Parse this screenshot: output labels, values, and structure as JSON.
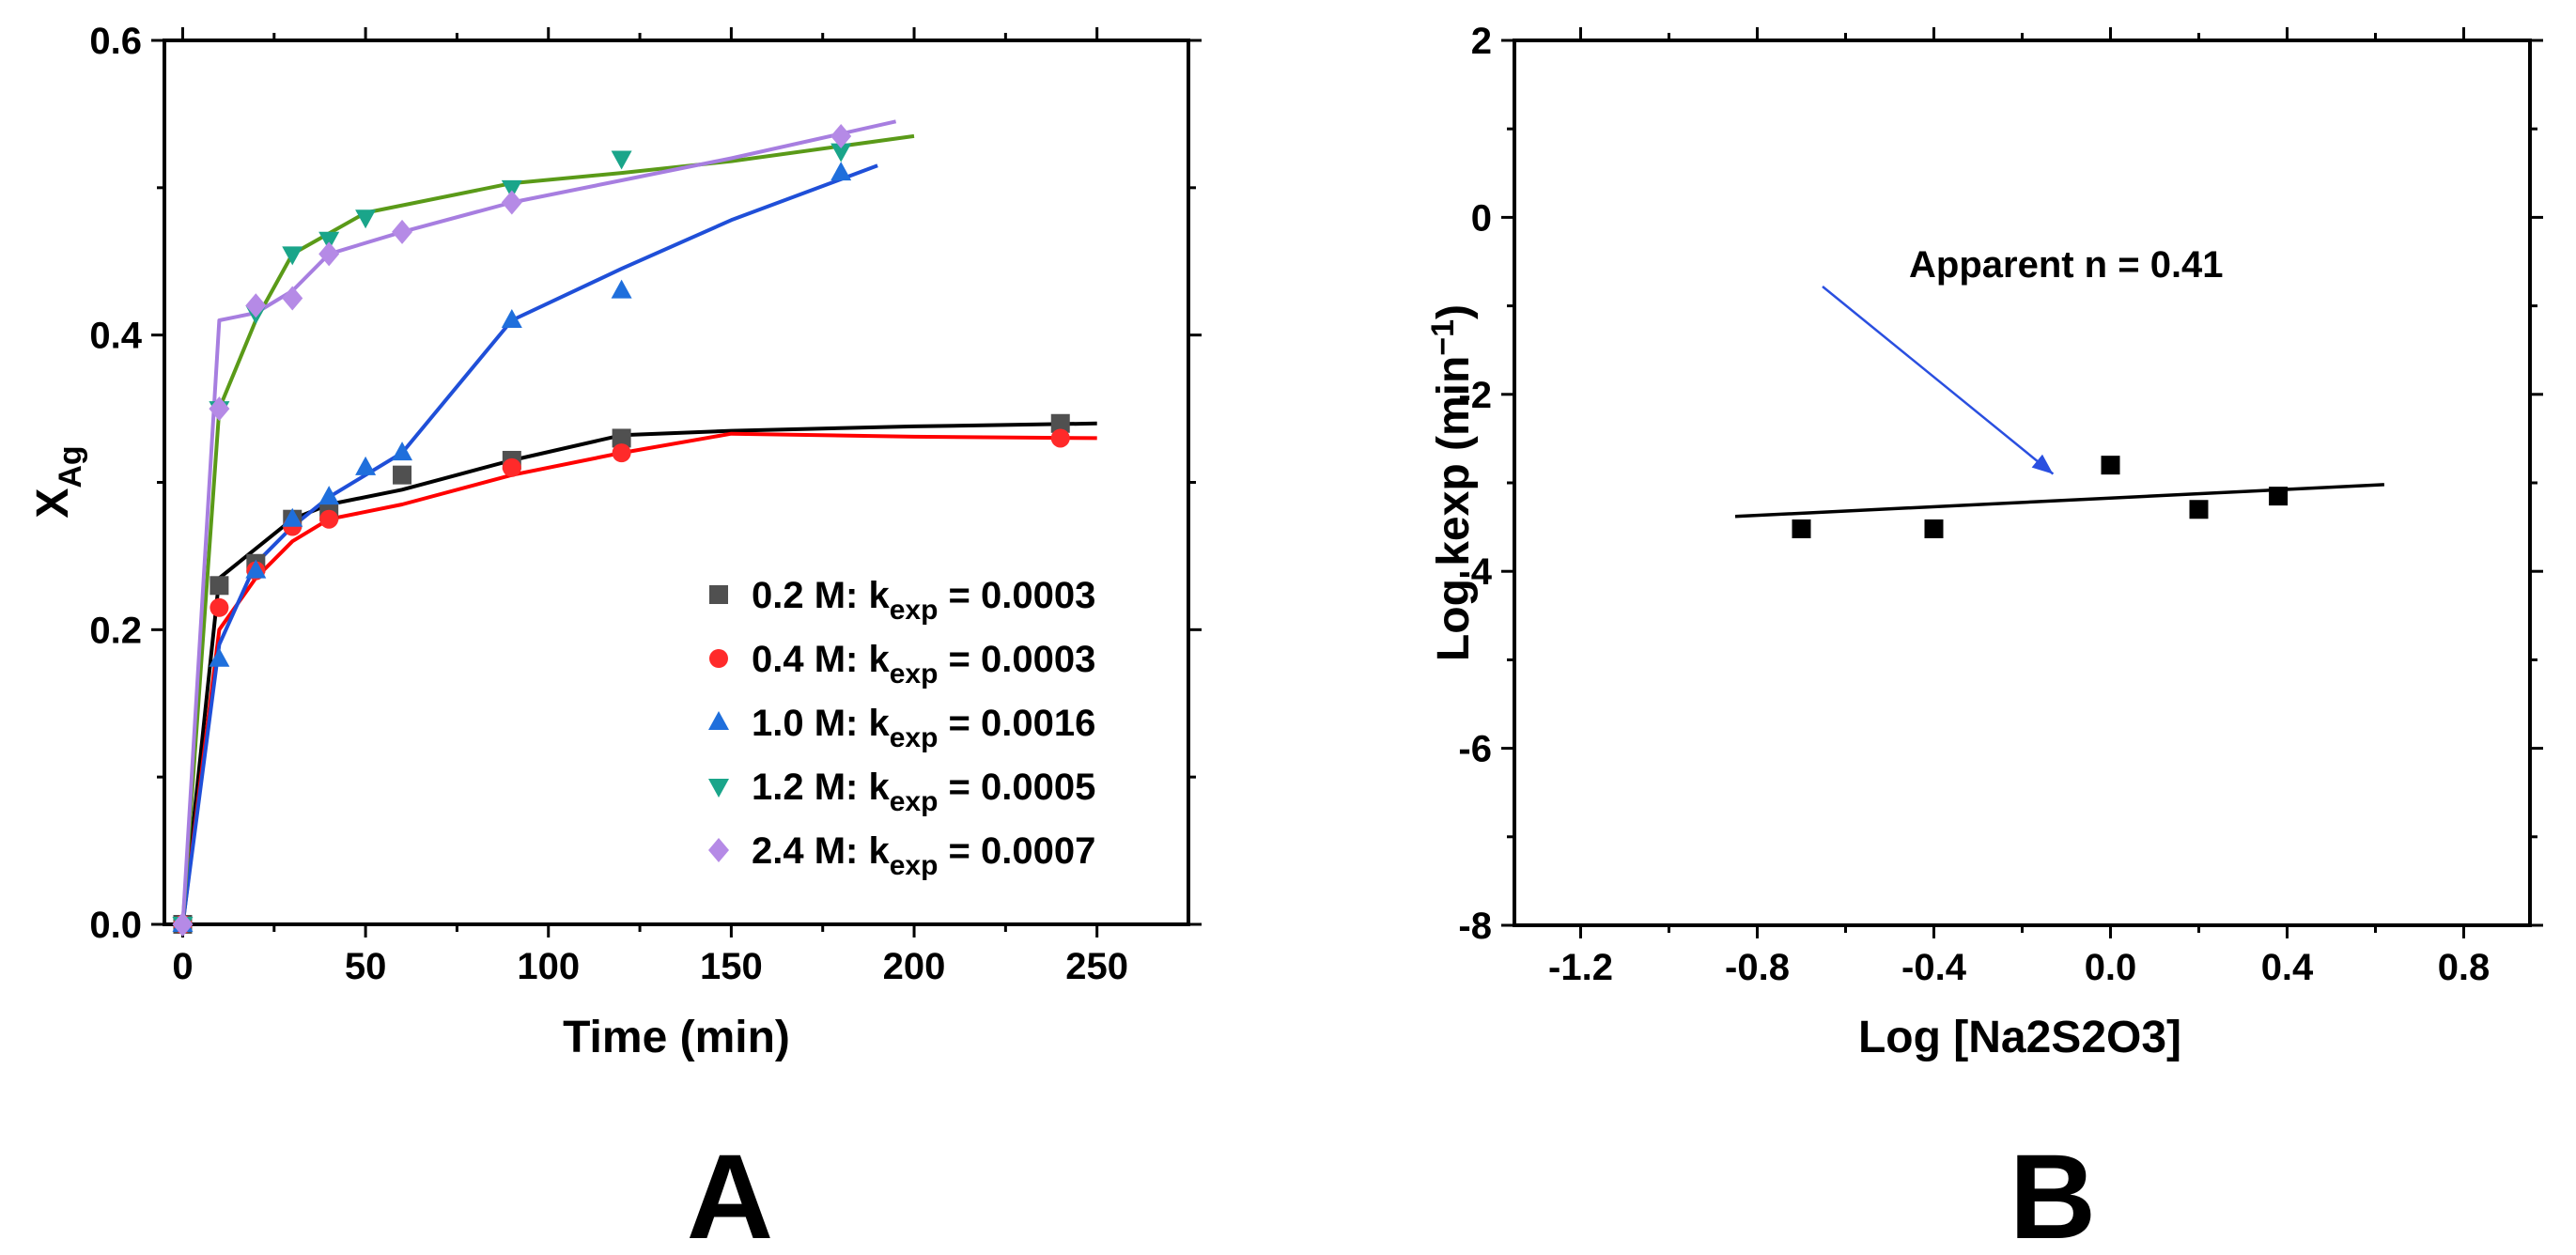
{
  "chart_data": [
    {
      "panel": "A",
      "type": "scatter",
      "title": "",
      "xlabel": "Time (min)",
      "ylabel_main": "X",
      "ylabel_sub": "Ag",
      "xlim": [
        -5,
        275
      ],
      "ylim": [
        0.0,
        0.6
      ],
      "xticks": [
        0,
        50,
        100,
        150,
        200,
        250
      ],
      "xtick_labels": [
        "0",
        "50",
        "100",
        "150",
        "200",
        "250"
      ],
      "yticks": [
        0.0,
        0.2,
        0.4,
        0.6
      ],
      "ytick_labels": [
        "0.0",
        "0.2",
        "0.4",
        "0.6"
      ],
      "legend_position": "bottom-right",
      "series": [
        {
          "name_prefix": "0.2 M: k",
          "name_sub": "exp",
          "name_suffix": " = 0.0003",
          "color": "#505050",
          "marker": "square",
          "points": [
            [
              0,
              0.0
            ],
            [
              10,
              0.23
            ],
            [
              20,
              0.245
            ],
            [
              30,
              0.275
            ],
            [
              40,
              0.28
            ],
            [
              60,
              0.305
            ],
            [
              90,
              0.315
            ],
            [
              120,
              0.33
            ],
            [
              240,
              0.34
            ]
          ],
          "fit": [
            [
              0,
              0.0
            ],
            [
              10,
              0.235
            ],
            [
              20,
              0.255
            ],
            [
              30,
              0.275
            ],
            [
              40,
              0.285
            ],
            [
              60,
              0.295
            ],
            [
              90,
              0.315
            ],
            [
              120,
              0.332
            ],
            [
              150,
              0.335
            ],
            [
              200,
              0.338
            ],
            [
              250,
              0.34
            ]
          ],
          "fit_color": "#000000"
        },
        {
          "name_prefix": "0.4 M: k",
          "name_sub": "exp",
          "name_suffix": " = 0.0003",
          "color": "#ff2a2a",
          "marker": "circle",
          "points": [
            [
              0,
              0.0
            ],
            [
              10,
              0.215
            ],
            [
              20,
              0.24
            ],
            [
              30,
              0.27
            ],
            [
              40,
              0.275
            ],
            [
              90,
              0.31
            ],
            [
              120,
              0.32
            ],
            [
              240,
              0.33
            ]
          ],
          "fit": [
            [
              0,
              0.0
            ],
            [
              10,
              0.2
            ],
            [
              20,
              0.235
            ],
            [
              30,
              0.26
            ],
            [
              40,
              0.275
            ],
            [
              60,
              0.285
            ],
            [
              90,
              0.305
            ],
            [
              120,
              0.32
            ],
            [
              150,
              0.333
            ],
            [
              200,
              0.331
            ],
            [
              250,
              0.33
            ]
          ],
          "fit_color": "#ff0000"
        },
        {
          "name_prefix": "1.0 M: k",
          "name_sub": "exp",
          "name_suffix": " = 0.0016",
          "color": "#1f6fdc",
          "marker": "triangle-up",
          "points": [
            [
              0,
              0.0
            ],
            [
              10,
              0.18
            ],
            [
              20,
              0.24
            ],
            [
              30,
              0.275
            ],
            [
              40,
              0.29
            ],
            [
              50,
              0.31
            ],
            [
              60,
              0.32
            ],
            [
              90,
              0.41
            ],
            [
              120,
              0.43
            ],
            [
              180,
              0.51
            ]
          ],
          "fit": [
            [
              0,
              0.0
            ],
            [
              10,
              0.19
            ],
            [
              20,
              0.245
            ],
            [
              30,
              0.27
            ],
            [
              40,
              0.29
            ],
            [
              60,
              0.32
            ],
            [
              90,
              0.41
            ],
            [
              120,
              0.445
            ],
            [
              150,
              0.478
            ],
            [
              190,
              0.515
            ]
          ],
          "fit_color": "#1f4fd8"
        },
        {
          "name_prefix": "1.2 M: k",
          "name_sub": "exp",
          "name_suffix": " = 0.0005",
          "color": "#1aa58a",
          "marker": "triangle-down",
          "points": [
            [
              0,
              0.0
            ],
            [
              10,
              0.35
            ],
            [
              20,
              0.415
            ],
            [
              30,
              0.455
            ],
            [
              40,
              0.465
            ],
            [
              50,
              0.48
            ],
            [
              90,
              0.5
            ],
            [
              120,
              0.52
            ],
            [
              180,
              0.525
            ]
          ],
          "fit": [
            [
              0,
              0.0
            ],
            [
              10,
              0.35
            ],
            [
              20,
              0.41
            ],
            [
              30,
              0.455
            ],
            [
              50,
              0.483
            ],
            [
              90,
              0.503
            ],
            [
              120,
              0.51
            ],
            [
              150,
              0.518
            ],
            [
              200,
              0.535
            ]
          ],
          "fit_color": "#5a9a18"
        },
        {
          "name_prefix": "2.4 M: k",
          "name_sub": "exp",
          "name_suffix": " = 0.0007",
          "color": "#b58ae6",
          "marker": "diamond",
          "points": [
            [
              0,
              0.0
            ],
            [
              10,
              0.35
            ],
            [
              20,
              0.42
            ],
            [
              30,
              0.425
            ],
            [
              40,
              0.455
            ],
            [
              60,
              0.47
            ],
            [
              90,
              0.49
            ],
            [
              180,
              0.535
            ]
          ],
          "fit": [
            [
              0,
              0.0
            ],
            [
              10,
              0.41
            ],
            [
              20,
              0.415
            ],
            [
              30,
              0.43
            ],
            [
              40,
              0.455
            ],
            [
              60,
              0.47
            ],
            [
              90,
              0.49
            ],
            [
              120,
              0.505
            ],
            [
              150,
              0.52
            ],
            [
              195,
              0.545
            ]
          ],
          "fit_color": "#a77ee0"
        }
      ]
    },
    {
      "panel": "B",
      "type": "scatter",
      "title": "",
      "xlabel": "Log [Na2S2O3]",
      "ylabel": "Log kexp (min",
      "ylabel_sup": "−1",
      "ylabel_close": ")",
      "xlim": [
        -1.35,
        0.95
      ],
      "ylim": [
        -8,
        2
      ],
      "xticks": [
        -1.2,
        -0.8,
        -0.4,
        0.0,
        0.4,
        0.8
      ],
      "xtick_labels": [
        "-1.2",
        "-0.8",
        "-0.4",
        "0.0",
        "0.4",
        "0.8"
      ],
      "yticks": [
        -8,
        -6,
        -4,
        -2,
        0,
        2
      ],
      "ytick_labels": [
        "-8",
        "-6",
        "-4",
        "-2",
        "0",
        "2"
      ],
      "annotation": "Apparent n = 0.41",
      "arrow_color": "#2a4fe0",
      "series": [
        {
          "name": "Log kexp",
          "color": "#000000",
          "marker": "square",
          "points": [
            [
              -0.7,
              -3.52
            ],
            [
              -0.4,
              -3.52
            ],
            [
              0.0,
              -2.8
            ],
            [
              0.2,
              -3.3
            ],
            [
              0.38,
              -3.15
            ]
          ],
          "fit": [
            [
              -0.85,
              -3.38
            ],
            [
              0.62,
              -3.02
            ]
          ],
          "fit_color": "#000000"
        }
      ]
    }
  ],
  "panel_labels": [
    "A",
    "B"
  ]
}
